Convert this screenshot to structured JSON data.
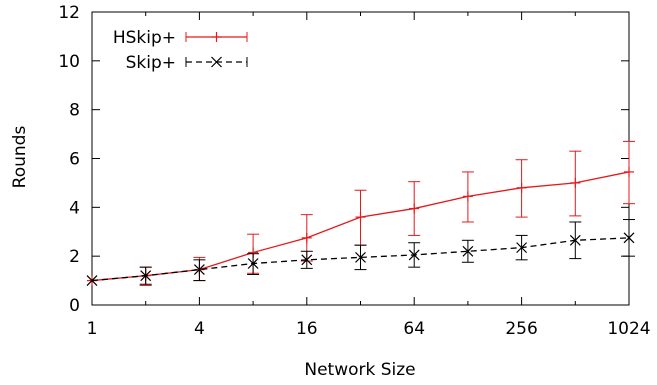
{
  "chart_data": {
    "type": "line",
    "xscale": "log2",
    "xlabel": "Network Size",
    "ylabel": "Rounds",
    "ylim": [
      0,
      12
    ],
    "xlim": [
      1,
      1024
    ],
    "grid": false,
    "legend_position": "top-left",
    "xticks": [
      {
        "value": 1,
        "label": "1"
      },
      {
        "value": 4,
        "label": "4"
      },
      {
        "value": 16,
        "label": "16"
      },
      {
        "value": 64,
        "label": "64"
      },
      {
        "value": 256,
        "label": "256"
      },
      {
        "value": 1024,
        "label": "1024"
      }
    ],
    "yticks": [
      {
        "value": 0,
        "label": "0"
      },
      {
        "value": 2,
        "label": "2"
      },
      {
        "value": 4,
        "label": "4"
      },
      {
        "value": 6,
        "label": "6"
      },
      {
        "value": 8,
        "label": "8"
      },
      {
        "value": 10,
        "label": "10"
      },
      {
        "value": 12,
        "label": "12"
      }
    ],
    "series": [
      {
        "name": "HSkip+",
        "color": "#e41a1c",
        "style": "solid",
        "marker": "plus",
        "points": [
          {
            "x": 1,
            "y": 1.0,
            "lo": 1.0,
            "hi": 1.0
          },
          {
            "x": 2,
            "y": 1.2,
            "lo": 0.8,
            "hi": 1.55
          },
          {
            "x": 4,
            "y": 1.45,
            "lo": 1.0,
            "hi": 1.95
          },
          {
            "x": 8,
            "y": 2.15,
            "lo": 1.3,
            "hi": 2.9
          },
          {
            "x": 16,
            "y": 2.75,
            "lo": 1.8,
            "hi": 3.7
          },
          {
            "x": 32,
            "y": 3.6,
            "lo": 2.45,
            "hi": 4.7
          },
          {
            "x": 64,
            "y": 3.95,
            "lo": 2.85,
            "hi": 5.05
          },
          {
            "x": 128,
            "y": 4.45,
            "lo": 3.4,
            "hi": 5.45
          },
          {
            "x": 256,
            "y": 4.8,
            "lo": 3.6,
            "hi": 5.95
          },
          {
            "x": 512,
            "y": 5.0,
            "lo": 3.65,
            "hi": 6.3
          },
          {
            "x": 1024,
            "y": 5.45,
            "lo": 4.15,
            "hi": 6.7
          }
        ]
      },
      {
        "name": "Skip+",
        "color": "#000000",
        "style": "dashed",
        "marker": "cross",
        "points": [
          {
            "x": 1,
            "y": 1.0,
            "lo": 1.0,
            "hi": 1.0
          },
          {
            "x": 2,
            "y": 1.2,
            "lo": 0.85,
            "hi": 1.55
          },
          {
            "x": 4,
            "y": 1.45,
            "lo": 1.0,
            "hi": 1.85
          },
          {
            "x": 8,
            "y": 1.7,
            "lo": 1.25,
            "hi": 2.1
          },
          {
            "x": 16,
            "y": 1.85,
            "lo": 1.5,
            "hi": 2.2
          },
          {
            "x": 32,
            "y": 1.95,
            "lo": 1.45,
            "hi": 2.45
          },
          {
            "x": 64,
            "y": 2.05,
            "lo": 1.55,
            "hi": 2.55
          },
          {
            "x": 128,
            "y": 2.2,
            "lo": 1.75,
            "hi": 2.65
          },
          {
            "x": 256,
            "y": 2.35,
            "lo": 1.85,
            "hi": 2.85
          },
          {
            "x": 512,
            "y": 2.65,
            "lo": 1.9,
            "hi": 3.4
          },
          {
            "x": 1024,
            "y": 2.75,
            "lo": 2.0,
            "hi": 3.5
          }
        ]
      }
    ]
  }
}
